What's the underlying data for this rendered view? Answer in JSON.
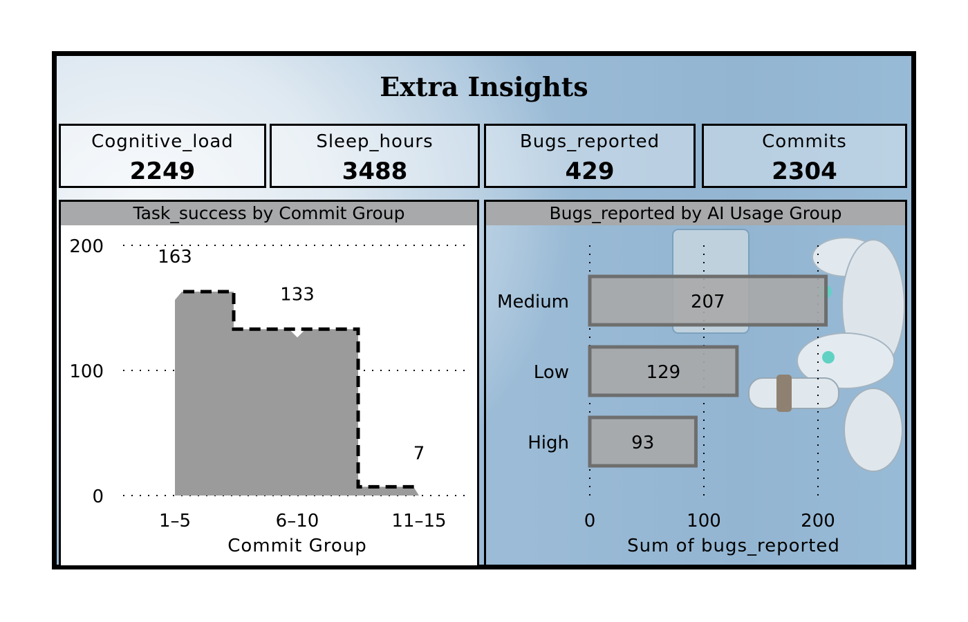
{
  "dashboard": {
    "title": "Extra Insights"
  },
  "kpis": [
    {
      "label": "Cognitive_load",
      "value": "2249"
    },
    {
      "label": "Sleep_hours",
      "value": "3488"
    },
    {
      "label": "Bugs_reported",
      "value": "429"
    },
    {
      "label": "Commits",
      "value": "2304"
    }
  ],
  "chart_data": [
    {
      "type": "area",
      "title": "Task_success by Commit Group",
      "xlabel": "Commit Group",
      "ylabel": "",
      "categories": [
        "1–5",
        "6–10",
        "11–15"
      ],
      "values": [
        163,
        133,
        7
      ],
      "ylim": [
        0,
        200
      ],
      "yticks": [
        "0",
        "100",
        "200"
      ],
      "grid": true,
      "fill_color": "#9b9b9b",
      "line_style": "dashed step",
      "data_labels": [
        "163",
        "133",
        "7"
      ]
    },
    {
      "type": "bar",
      "orientation": "horizontal",
      "title": "Bugs_reported by AI Usage Group",
      "xlabel": "Sum of bugs_reported",
      "ylabel": "",
      "categories": [
        "Medium",
        "Low",
        "High"
      ],
      "values": [
        207,
        129,
        93
      ],
      "xlim": [
        0,
        260
      ],
      "xticks": [
        "0",
        "100",
        "200"
      ],
      "grid": true,
      "bar_color": "#a9a9a9",
      "bar_edge_color": "#6e6e6e",
      "data_labels": [
        "207",
        "129",
        "93"
      ]
    }
  ]
}
